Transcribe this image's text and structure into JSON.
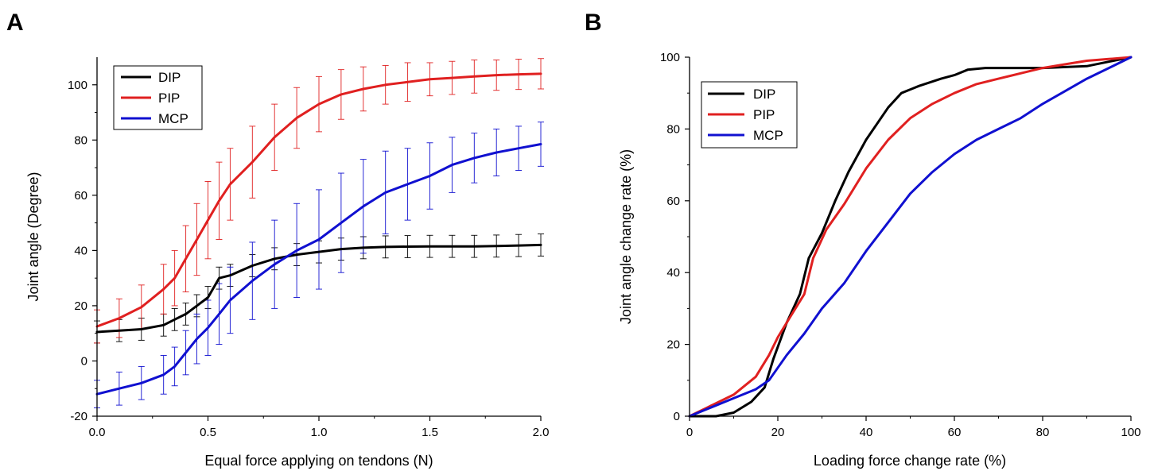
{
  "panels": {
    "left_label": "A",
    "right_label": "B"
  },
  "chart_data": [
    {
      "type": "line",
      "panel": "A",
      "xlabel": "Equal force applying on tendons (N)",
      "ylabel": "Joint angle (Degree)",
      "xlim": [
        0,
        2.0
      ],
      "ylim": [
        -20,
        110
      ],
      "xticks": [
        0.0,
        0.5,
        1.0,
        1.5,
        2.0
      ],
      "xtick_labels": [
        "0.0",
        "0.5",
        "1.0",
        "1.5",
        "2.0"
      ],
      "yticks": [
        -20,
        0,
        20,
        40,
        60,
        80,
        100
      ],
      "ytick_labels": [
        "-20",
        "0",
        "20",
        "40",
        "60",
        "80",
        "100"
      ],
      "error_bars": true,
      "legend_position": "top-left",
      "x": [
        0.0,
        0.1,
        0.2,
        0.3,
        0.35,
        0.4,
        0.45,
        0.5,
        0.55,
        0.6,
        0.7,
        0.8,
        0.9,
        1.0,
        1.1,
        1.2,
        1.3,
        1.4,
        1.5,
        1.6,
        1.7,
        1.8,
        1.9,
        2.0
      ],
      "series": [
        {
          "name": "DIP",
          "color": "#000000",
          "values": [
            10.5,
            11,
            11.5,
            13,
            15,
            17,
            20,
            23,
            30,
            31,
            34.5,
            37,
            38.5,
            39.5,
            40.5,
            41,
            41.3,
            41.4,
            41.5,
            41.5,
            41.5,
            41.6,
            41.8,
            42
          ],
          "errors": [
            4,
            4,
            4,
            4,
            4,
            4,
            4,
            4,
            4,
            4,
            4,
            4,
            4,
            4,
            4,
            4,
            4,
            4,
            4,
            4,
            4,
            4,
            4,
            4
          ]
        },
        {
          "name": "PIP",
          "color": "#e02020",
          "values": [
            12.5,
            15.5,
            19.5,
            26,
            30,
            37,
            44,
            51,
            58,
            64,
            72,
            81,
            88,
            93,
            96.5,
            98.5,
            100,
            101,
            102,
            102.5,
            103,
            103.5,
            103.8,
            104
          ],
          "errors": [
            6,
            7,
            8,
            9,
            10,
            12,
            13,
            14,
            14,
            13,
            13,
            12,
            11,
            10,
            9,
            8,
            7,
            7,
            6,
            6,
            6,
            5.5,
            5.5,
            5.5
          ]
        },
        {
          "name": "MCP",
          "color": "#1010d0",
          "values": [
            -12,
            -10,
            -8,
            -5,
            -2,
            3,
            8,
            12,
            17,
            22,
            29,
            35,
            40,
            44,
            50,
            56,
            61,
            64,
            67,
            71,
            73.5,
            75.5,
            77,
            78.5
          ],
          "errors": [
            5,
            6,
            6,
            7,
            7,
            8,
            9,
            10,
            11,
            12,
            14,
            16,
            17,
            18,
            18,
            17,
            15,
            13,
            12,
            10,
            9,
            8.5,
            8,
            8
          ]
        }
      ]
    },
    {
      "type": "line",
      "panel": "B",
      "xlabel": "Loading force change rate (%)",
      "ylabel": "Joint angle change rate (%)",
      "xlim": [
        0,
        100
      ],
      "ylim": [
        0,
        100
      ],
      "xticks": [
        0,
        20,
        40,
        60,
        80,
        100
      ],
      "xtick_labels": [
        "0",
        "20",
        "40",
        "60",
        "80",
        "100"
      ],
      "yticks": [
        0,
        20,
        40,
        60,
        80,
        100
      ],
      "ytick_labels": [
        "0",
        "20",
        "40",
        "60",
        "80",
        "100"
      ],
      "legend_position": "top-left",
      "series": [
        {
          "name": "DIP",
          "color": "#000000",
          "x": [
            0,
            6,
            10,
            14,
            17,
            19,
            22,
            25,
            27,
            30,
            33,
            36,
            40,
            45,
            48,
            52,
            57,
            60,
            63,
            67,
            72,
            80,
            90,
            100
          ],
          "y": [
            0,
            0,
            1,
            4,
            8,
            16,
            26,
            34,
            44,
            51,
            60,
            68,
            77,
            86,
            90,
            92,
            94,
            95,
            96.5,
            97,
            97,
            97,
            97.5,
            100
          ]
        },
        {
          "name": "PIP",
          "color": "#e02020",
          "x": [
            0,
            5,
            10,
            15,
            18,
            20,
            23,
            26,
            28,
            31,
            35,
            40,
            45,
            50,
            55,
            60,
            65,
            70,
            75,
            80,
            85,
            90,
            95,
            100
          ],
          "y": [
            0,
            3,
            6,
            11,
            17,
            22,
            28,
            34,
            44,
            52,
            59,
            69,
            77,
            83,
            87,
            90,
            92.5,
            94,
            95.5,
            97,
            98,
            99,
            99.5,
            100
          ]
        },
        {
          "name": "MCP",
          "color": "#1010d0",
          "x": [
            0,
            5,
            10,
            15,
            18,
            22,
            26,
            30,
            35,
            40,
            45,
            50,
            55,
            60,
            65,
            70,
            75,
            80,
            85,
            90,
            95,
            100
          ],
          "y": [
            0,
            2.5,
            5,
            7.5,
            10,
            17,
            23,
            30,
            37,
            46,
            54,
            62,
            68,
            73,
            77,
            80,
            83,
            87,
            90.5,
            94,
            97,
            100
          ]
        }
      ]
    }
  ]
}
